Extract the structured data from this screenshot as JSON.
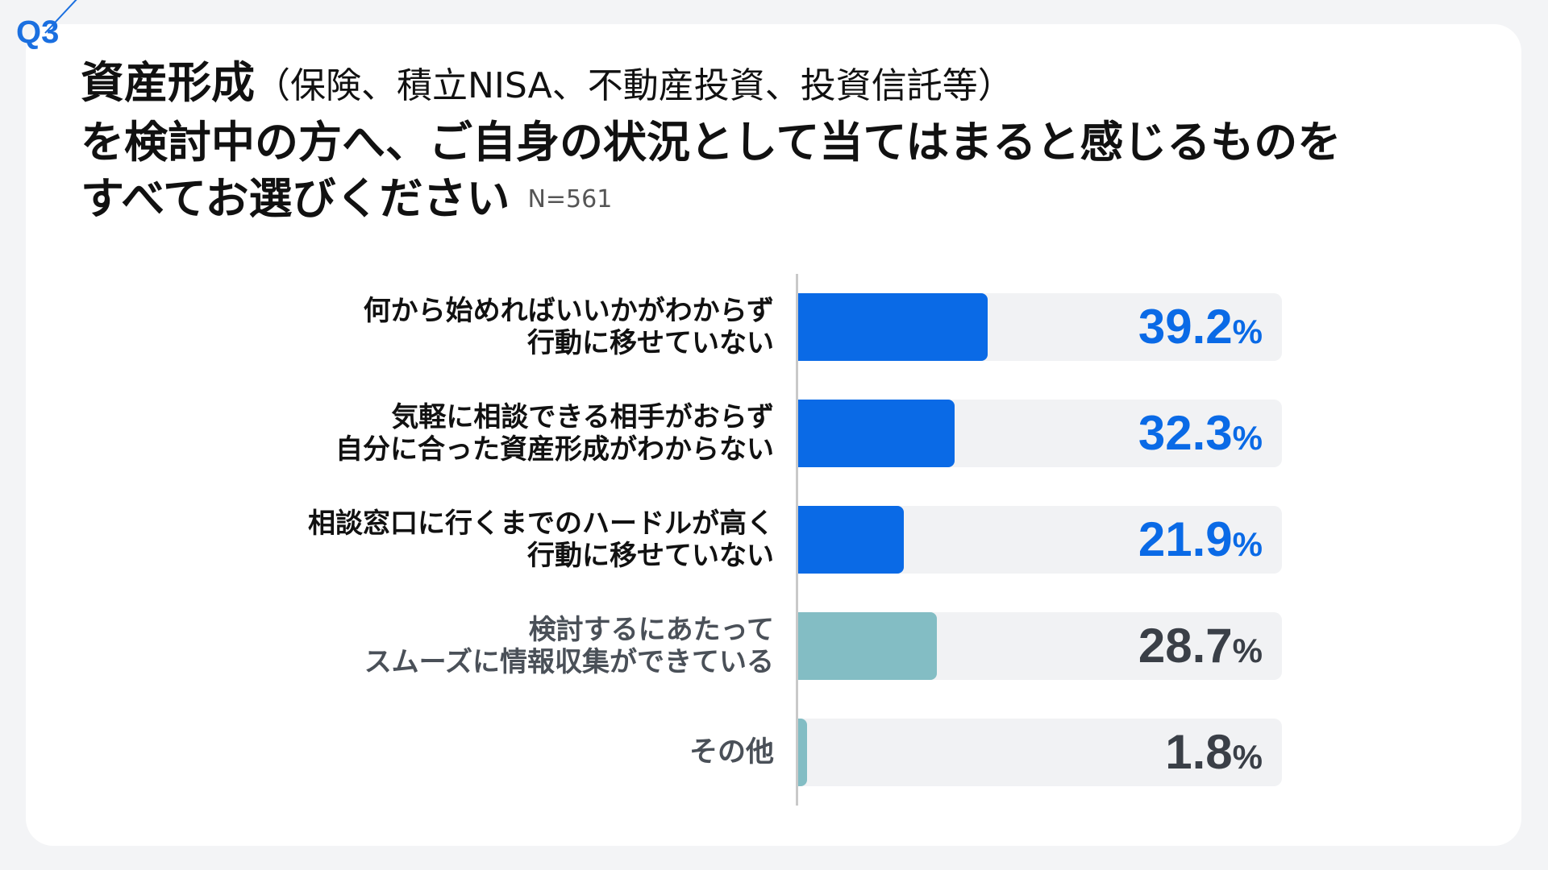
{
  "question_label": "Q3",
  "title": {
    "line1_main": "資産形成",
    "line1_sub": "（保険、積立NISA、不動産投資、投資信託等）",
    "line2": "を検討中の方へ、ご自身の状況として当てはまると感じるものを",
    "line3": "すべてお選びください",
    "n_label": "N=561"
  },
  "colors": {
    "highlight_bar": "#0a6ae6",
    "highlight_text": "#0a6ae6",
    "other_bar": "#83bdc4",
    "other_text": "#3a3f47",
    "track": "#f1f2f4",
    "question_accent": "#1a6fe0"
  },
  "chart_data": {
    "type": "bar",
    "orientation": "horizontal",
    "unit": "%",
    "xlim": [
      0,
      100
    ],
    "grid": false,
    "categories": [
      [
        "何から始めればいいかがわからず",
        "行動に移せていない"
      ],
      [
        "気軽に相談できる相手がおらず",
        "自分に合った資産形成がわからない"
      ],
      [
        "相談窓口に行くまでのハードルが高く",
        "行動に移せていない"
      ],
      [
        "検討するにあたって",
        "スムーズに情報収集ができている"
      ],
      [
        "その他"
      ]
    ],
    "values": [
      39.2,
      32.3,
      21.9,
      28.7,
      1.8
    ],
    "value_labels": [
      "39.2",
      "32.3",
      "21.9",
      "28.7",
      "1.8"
    ],
    "percent_sign": "%",
    "highlighted": [
      true,
      true,
      true,
      false,
      false
    ]
  }
}
